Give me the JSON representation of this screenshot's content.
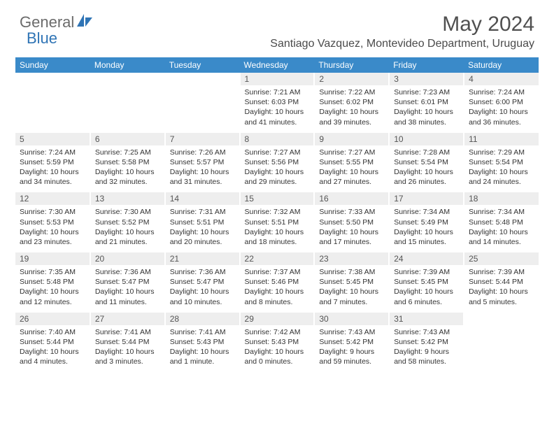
{
  "logo": {
    "part1": "General",
    "part2": "Blue"
  },
  "colors": {
    "header_bg": "#3a8ac9",
    "header_fg": "#ffffff",
    "daynum_bg": "#eeeeee",
    "logo_gray": "#6b6b6b",
    "logo_blue": "#2f74b5"
  },
  "title": "May 2024",
  "location": "Santiago Vazquez, Montevideo Department, Uruguay",
  "day_names": [
    "Sunday",
    "Monday",
    "Tuesday",
    "Wednesday",
    "Thursday",
    "Friday",
    "Saturday"
  ],
  "weeks": [
    [
      null,
      null,
      null,
      {
        "n": "1",
        "sr": "7:21 AM",
        "ss": "6:03 PM",
        "dl": "10 hours and 41 minutes."
      },
      {
        "n": "2",
        "sr": "7:22 AM",
        "ss": "6:02 PM",
        "dl": "10 hours and 39 minutes."
      },
      {
        "n": "3",
        "sr": "7:23 AM",
        "ss": "6:01 PM",
        "dl": "10 hours and 38 minutes."
      },
      {
        "n": "4",
        "sr": "7:24 AM",
        "ss": "6:00 PM",
        "dl": "10 hours and 36 minutes."
      }
    ],
    [
      {
        "n": "5",
        "sr": "7:24 AM",
        "ss": "5:59 PM",
        "dl": "10 hours and 34 minutes."
      },
      {
        "n": "6",
        "sr": "7:25 AM",
        "ss": "5:58 PM",
        "dl": "10 hours and 32 minutes."
      },
      {
        "n": "7",
        "sr": "7:26 AM",
        "ss": "5:57 PM",
        "dl": "10 hours and 31 minutes."
      },
      {
        "n": "8",
        "sr": "7:27 AM",
        "ss": "5:56 PM",
        "dl": "10 hours and 29 minutes."
      },
      {
        "n": "9",
        "sr": "7:27 AM",
        "ss": "5:55 PM",
        "dl": "10 hours and 27 minutes."
      },
      {
        "n": "10",
        "sr": "7:28 AM",
        "ss": "5:54 PM",
        "dl": "10 hours and 26 minutes."
      },
      {
        "n": "11",
        "sr": "7:29 AM",
        "ss": "5:54 PM",
        "dl": "10 hours and 24 minutes."
      }
    ],
    [
      {
        "n": "12",
        "sr": "7:30 AM",
        "ss": "5:53 PM",
        "dl": "10 hours and 23 minutes."
      },
      {
        "n": "13",
        "sr": "7:30 AM",
        "ss": "5:52 PM",
        "dl": "10 hours and 21 minutes."
      },
      {
        "n": "14",
        "sr": "7:31 AM",
        "ss": "5:51 PM",
        "dl": "10 hours and 20 minutes."
      },
      {
        "n": "15",
        "sr": "7:32 AM",
        "ss": "5:51 PM",
        "dl": "10 hours and 18 minutes."
      },
      {
        "n": "16",
        "sr": "7:33 AM",
        "ss": "5:50 PM",
        "dl": "10 hours and 17 minutes."
      },
      {
        "n": "17",
        "sr": "7:34 AM",
        "ss": "5:49 PM",
        "dl": "10 hours and 15 minutes."
      },
      {
        "n": "18",
        "sr": "7:34 AM",
        "ss": "5:48 PM",
        "dl": "10 hours and 14 minutes."
      }
    ],
    [
      {
        "n": "19",
        "sr": "7:35 AM",
        "ss": "5:48 PM",
        "dl": "10 hours and 12 minutes."
      },
      {
        "n": "20",
        "sr": "7:36 AM",
        "ss": "5:47 PM",
        "dl": "10 hours and 11 minutes."
      },
      {
        "n": "21",
        "sr": "7:36 AM",
        "ss": "5:47 PM",
        "dl": "10 hours and 10 minutes."
      },
      {
        "n": "22",
        "sr": "7:37 AM",
        "ss": "5:46 PM",
        "dl": "10 hours and 8 minutes."
      },
      {
        "n": "23",
        "sr": "7:38 AM",
        "ss": "5:45 PM",
        "dl": "10 hours and 7 minutes."
      },
      {
        "n": "24",
        "sr": "7:39 AM",
        "ss": "5:45 PM",
        "dl": "10 hours and 6 minutes."
      },
      {
        "n": "25",
        "sr": "7:39 AM",
        "ss": "5:44 PM",
        "dl": "10 hours and 5 minutes."
      }
    ],
    [
      {
        "n": "26",
        "sr": "7:40 AM",
        "ss": "5:44 PM",
        "dl": "10 hours and 4 minutes."
      },
      {
        "n": "27",
        "sr": "7:41 AM",
        "ss": "5:44 PM",
        "dl": "10 hours and 3 minutes."
      },
      {
        "n": "28",
        "sr": "7:41 AM",
        "ss": "5:43 PM",
        "dl": "10 hours and 1 minute."
      },
      {
        "n": "29",
        "sr": "7:42 AM",
        "ss": "5:43 PM",
        "dl": "10 hours and 0 minutes."
      },
      {
        "n": "30",
        "sr": "7:43 AM",
        "ss": "5:42 PM",
        "dl": "9 hours and 59 minutes."
      },
      {
        "n": "31",
        "sr": "7:43 AM",
        "ss": "5:42 PM",
        "dl": "9 hours and 58 minutes."
      },
      null
    ]
  ],
  "labels": {
    "sunrise": "Sunrise: ",
    "sunset": "Sunset: ",
    "daylight": "Daylight: "
  }
}
